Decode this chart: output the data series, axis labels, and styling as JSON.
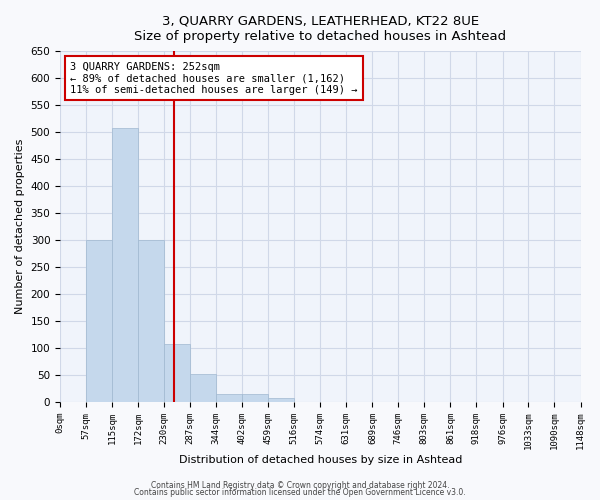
{
  "title": "3, QUARRY GARDENS, LEATHERHEAD, KT22 8UE",
  "subtitle": "Size of property relative to detached houses in Ashtead",
  "xlabel": "Distribution of detached houses by size in Ashtead",
  "ylabel": "Number of detached properties",
  "bar_edges": [
    0,
    57,
    115,
    172,
    230,
    287,
    344,
    402,
    459,
    516,
    574,
    631,
    689,
    746,
    803,
    861,
    918,
    976,
    1033,
    1090,
    1148
  ],
  "bar_heights": [
    0,
    300,
    507,
    300,
    107,
    52,
    15,
    15,
    7,
    0,
    0,
    0,
    0,
    0,
    0,
    0,
    0,
    0,
    0,
    0
  ],
  "bar_color": "#c5d8ec",
  "bar_edgecolor": "#a0b8d0",
  "vline_x": 252,
  "vline_color": "#cc0000",
  "annotation_title": "3 QUARRY GARDENS: 252sqm",
  "annotation_line1": "← 89% of detached houses are smaller (1,162)",
  "annotation_line2": "11% of semi-detached houses are larger (149) →",
  "annotation_box_color": "#cc0000",
  "ylim": [
    0,
    650
  ],
  "xlim": [
    0,
    1148
  ],
  "tick_labels": [
    "0sqm",
    "57sqm",
    "115sqm",
    "172sqm",
    "230sqm",
    "287sqm",
    "344sqm",
    "402sqm",
    "459sqm",
    "516sqm",
    "574sqm",
    "631sqm",
    "689sqm",
    "746sqm",
    "803sqm",
    "861sqm",
    "918sqm",
    "976sqm",
    "1033sqm",
    "1090sqm",
    "1148sqm"
  ],
  "tick_positions": [
    0,
    57,
    115,
    172,
    230,
    287,
    344,
    402,
    459,
    516,
    574,
    631,
    689,
    746,
    803,
    861,
    918,
    976,
    1033,
    1090,
    1148
  ],
  "grid_color": "#d0d8e8",
  "bg_color": "#f0f4fb",
  "footer1": "Contains HM Land Registry data © Crown copyright and database right 2024.",
  "footer2": "Contains public sector information licensed under the Open Government Licence v3.0."
}
